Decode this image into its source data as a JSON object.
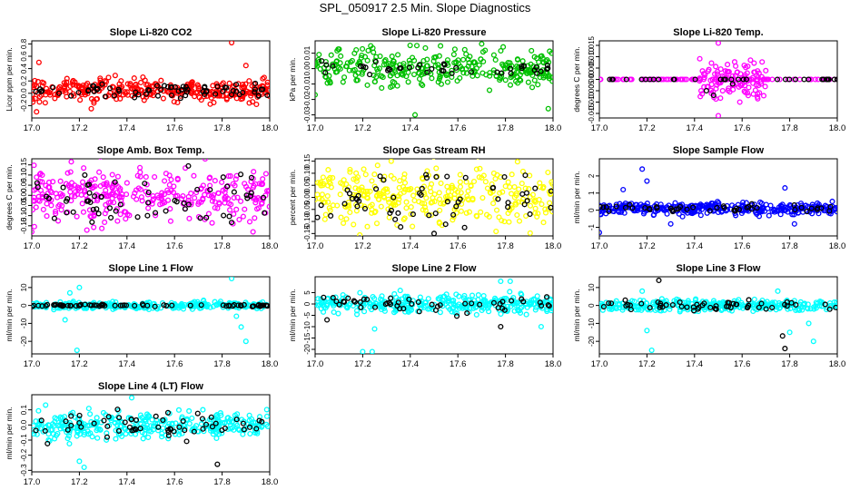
{
  "title": "SPL_050917  2.5 Min. Slope Diagnostics",
  "chart_data": [
    {
      "type": "scatter",
      "title": "Slope Li-820 CO2",
      "ylabel": "Licor ppm per min.",
      "xlabel": "",
      "xlim": [
        17.0,
        18.0
      ],
      "ylim": [
        -0.4,
        0.85
      ],
      "xticks": [
        17.0,
        17.2,
        17.4,
        17.6,
        17.8,
        18.0
      ],
      "xtick_labels": [
        "17.0",
        "17.2",
        "17.4",
        "17.6",
        "17.8",
        "18.0"
      ],
      "yticks": [
        -0.2,
        0.0,
        0.2,
        0.4,
        0.6,
        0.8
      ],
      "ytick_labels": [
        "-0.2",
        "0.0",
        "0.2",
        "0.4",
        "0.6",
        "0.8"
      ],
      "color": "#ff0000",
      "series": [
        {
          "name": "all",
          "color": "#ff0000",
          "n": 320,
          "center": 0.05,
          "spread": 0.09,
          "outliers": [
            [
              17.03,
              0.5
            ],
            [
              17.84,
              0.82
            ],
            [
              17.9,
              0.45
            ],
            [
              17.02,
              -0.3
            ],
            [
              17.25,
              -0.25
            ]
          ]
        },
        {
          "name": "selected",
          "color": "#000000",
          "n": 70,
          "center": 0.05,
          "spread": 0.06,
          "outliers": []
        }
      ]
    },
    {
      "type": "scatter",
      "title": "Slope Li-820 Pressure",
      "ylabel": "kPa per min.",
      "xlabel": "",
      "xlim": [
        17.0,
        18.0
      ],
      "ylim": [
        -0.032,
        0.018
      ],
      "xticks": [
        17.0,
        17.2,
        17.4,
        17.6,
        17.8,
        18.0
      ],
      "xtick_labels": [
        "17.0",
        "17.2",
        "17.4",
        "17.6",
        "17.8",
        "18.0"
      ],
      "yticks": [
        -0.03,
        -0.02,
        -0.01,
        0.0,
        0.01
      ],
      "ytick_labels": [
        "-0.03",
        "-0.02",
        "-0.01",
        "0.00",
        "0.01"
      ],
      "color": "#00c000",
      "series": [
        {
          "name": "all",
          "color": "#00c000",
          "n": 320,
          "center": 0.0,
          "spread": 0.006,
          "outliers": [
            [
              17.0,
              -0.017
            ],
            [
              17.42,
              -0.03
            ],
            [
              17.98,
              -0.026
            ],
            [
              17.7,
              0.016
            ]
          ]
        },
        {
          "name": "selected",
          "color": "#000000",
          "n": 40,
          "center": 0.0,
          "spread": 0.002,
          "outliers": []
        }
      ]
    },
    {
      "type": "scatter",
      "title": "Slope Li-820 Temp.",
      "ylabel": "degrees C per min.",
      "xlabel": "",
      "xlim": [
        17.0,
        18.0
      ],
      "ylim": [
        -0.017,
        0.017
      ],
      "xticks": [
        17.0,
        17.2,
        17.4,
        17.6,
        17.8,
        18.0
      ],
      "xtick_labels": [
        "17.0",
        "17.2",
        "17.4",
        "17.6",
        "17.8",
        "18.0"
      ],
      "yticks": [
        -0.015,
        -0.01,
        -0.005,
        0.0,
        0.005,
        0.01,
        0.015
      ],
      "ytick_labels": [
        "-0.015",
        "-0.010",
        "-0.005",
        "0.000",
        "0.005",
        "0.010",
        "0.015"
      ],
      "color": "#ff00ff",
      "series": [
        {
          "name": "baseline",
          "color": "#ff00ff",
          "n": 90,
          "center": 0.0,
          "spread": 0.0,
          "outliers": []
        },
        {
          "name": "burst",
          "color": "#ff00ff",
          "n": 110,
          "center": 0.0,
          "spread": 0.005,
          "xrange": [
            17.42,
            17.7
          ],
          "outliers": [
            [
              17.5,
              0.016
            ],
            [
              17.5,
              -0.016
            ]
          ]
        },
        {
          "name": "selected",
          "color": "#000000",
          "n": 35,
          "center": 0.0,
          "spread": 0.0,
          "outliers": [
            [
              17.45,
              -0.005
            ],
            [
              17.48,
              -0.007
            ],
            [
              17.56,
              -0.002
            ]
          ]
        }
      ]
    },
    {
      "type": "scatter",
      "title": "Slope Amb. Box Temp.",
      "ylabel": "degrees C per min.",
      "xlabel": "",
      "xlim": [
        17.0,
        18.0
      ],
      "ylim": [
        -0.2,
        0.18
      ],
      "xticks": [
        17.0,
        17.2,
        17.4,
        17.6,
        17.8,
        18.0
      ],
      "xtick_labels": [
        "17.0",
        "17.2",
        "17.4",
        "17.6",
        "17.8",
        "18.0"
      ],
      "yticks": [
        -0.15,
        -0.1,
        -0.05,
        0.0,
        0.05,
        0.1,
        0.15
      ],
      "ytick_labels": [
        "-0.15",
        "-0.10",
        "-0.05",
        "0.00",
        "0.05",
        "0.10",
        "0.15"
      ],
      "color": "#ff00ff",
      "series": [
        {
          "name": "all",
          "color": "#ff00ff",
          "n": 320,
          "center": 0.0,
          "spread": 0.065,
          "outliers": [
            [
              17.0,
              -0.18
            ],
            [
              17.93,
              -0.18
            ]
          ]
        },
        {
          "name": "selected",
          "color": "#000000",
          "n": 60,
          "center": 0.0,
          "spread": 0.06,
          "outliers": []
        }
      ]
    },
    {
      "type": "scatter",
      "title": "Slope Gas Stream RH",
      "ylabel": "percent per min.",
      "xlabel": "",
      "xlim": [
        17.0,
        18.0
      ],
      "ylim": [
        -0.16,
        0.16
      ],
      "xticks": [
        17.0,
        17.2,
        17.4,
        17.6,
        17.8,
        18.0
      ],
      "xtick_labels": [
        "17.0",
        "17.2",
        "17.4",
        "17.6",
        "17.8",
        "18.0"
      ],
      "yticks": [
        -0.15,
        -0.1,
        -0.05,
        0.0,
        0.05,
        0.1,
        0.15
      ],
      "ytick_labels": [
        "-0.15",
        "-0.10",
        "-0.05",
        "0.00",
        "0.05",
        "0.10",
        "0.15"
      ],
      "color": "#ffff00",
      "series": [
        {
          "name": "all",
          "color": "#ffff00",
          "n": 320,
          "center": 0.0,
          "spread": 0.06,
          "outliers": [
            [
              17.32,
              0.15
            ]
          ]
        },
        {
          "name": "selected",
          "color": "#000000",
          "n": 55,
          "center": 0.0,
          "spread": 0.055,
          "outliers": [
            [
              17.5,
              -0.15
            ]
          ]
        }
      ]
    },
    {
      "type": "scatter",
      "title": "Slope Sample Flow",
      "ylabel": "ml/min per min.",
      "xlabel": "",
      "xlim": [
        17.0,
        18.0
      ],
      "ylim": [
        -1.5,
        3.0
      ],
      "xticks": [
        17.0,
        17.2,
        17.4,
        17.6,
        17.8,
        18.0
      ],
      "xtick_labels": [
        "17.0",
        "17.2",
        "17.4",
        "17.6",
        "17.8",
        "18.0"
      ],
      "yticks": [
        -1,
        0,
        1,
        2
      ],
      "ytick_labels": [
        "-1",
        "0",
        "1",
        "2"
      ],
      "color": "#0000ff",
      "series": [
        {
          "name": "all",
          "color": "#0000ff",
          "n": 320,
          "center": 0.1,
          "spread": 0.18,
          "outliers": [
            [
              17.18,
              2.4
            ],
            [
              17.2,
              1.7
            ],
            [
              17.0,
              -1.3
            ],
            [
              17.3,
              -0.8
            ],
            [
              17.1,
              1.2
            ],
            [
              17.78,
              1.3
            ],
            [
              17.82,
              -0.8
            ]
          ]
        },
        {
          "name": "selected",
          "color": "#000000",
          "n": 45,
          "center": 0.1,
          "spread": 0.1,
          "outliers": []
        }
      ]
    },
    {
      "type": "scatter",
      "title": "Slope Line 1 Flow",
      "ylabel": "ml/min per min.",
      "xlabel": "",
      "xlim": [
        17.0,
        18.0
      ],
      "ylim": [
        -27,
        16
      ],
      "xticks": [
        17.0,
        17.2,
        17.4,
        17.6,
        17.8,
        18.0
      ],
      "xtick_labels": [
        "17.0",
        "17.2",
        "17.4",
        "17.6",
        "17.8",
        "18.0"
      ],
      "yticks": [
        -20,
        -10,
        0,
        10
      ],
      "ytick_labels": [
        "-20",
        "-10",
        "0",
        "10"
      ],
      "color": "#00ffff",
      "series": [
        {
          "name": "all",
          "color": "#00ffff",
          "n": 300,
          "center": 0.0,
          "spread": 1.0,
          "outliers": [
            [
              17.19,
              -25
            ],
            [
              17.16,
              7
            ],
            [
              17.2,
              10
            ],
            [
              17.14,
              -8
            ],
            [
              17.84,
              15
            ],
            [
              17.9,
              -20
            ],
            [
              17.88,
              -12
            ],
            [
              17.86,
              -6
            ]
          ]
        },
        {
          "name": "selected",
          "color": "#000000",
          "n": 70,
          "center": 0.0,
          "spread": 0.3,
          "outliers": []
        }
      ]
    },
    {
      "type": "scatter",
      "title": "Slope Line 2 Flow",
      "ylabel": "ml/min per min.",
      "xlabel": "",
      "xlim": [
        17.0,
        18.0
      ],
      "ylim": [
        -22,
        12
      ],
      "xticks": [
        17.0,
        17.2,
        17.4,
        17.6,
        17.8,
        18.0
      ],
      "xtick_labels": [
        "17.0",
        "17.2",
        "17.4",
        "17.6",
        "17.8",
        "18.0"
      ],
      "yticks": [
        -20,
        -15,
        -10,
        -5,
        0,
        5
      ],
      "ytick_labels": [
        "-20",
        "-15",
        "-10",
        "-5",
        "0",
        "5"
      ],
      "color": "#00ffff",
      "series": [
        {
          "name": "all",
          "color": "#00ffff",
          "n": 320,
          "center": 0.0,
          "spread": 2.0,
          "outliers": [
            [
              17.2,
              -21
            ],
            [
              17.24,
              -21
            ],
            [
              17.25,
              -11
            ],
            [
              17.78,
              10
            ],
            [
              17.82,
              10
            ],
            [
              17.95,
              -10
            ]
          ]
        },
        {
          "name": "selected",
          "color": "#000000",
          "n": 50,
          "center": 0.0,
          "spread": 2.0,
          "outliers": [
            [
              17.05,
              -7
            ],
            [
              17.78,
              -10
            ]
          ]
        }
      ]
    },
    {
      "type": "scatter",
      "title": "Slope Line 3 Flow",
      "ylabel": "ml/min per min.",
      "xlabel": "",
      "xlim": [
        17.0,
        18.0
      ],
      "ylim": [
        -27,
        16
      ],
      "xticks": [
        17.0,
        17.2,
        17.4,
        17.6,
        17.8,
        18.0
      ],
      "xtick_labels": [
        "17.0",
        "17.2",
        "17.4",
        "17.6",
        "17.8",
        "18.0"
      ],
      "yticks": [
        -20,
        -10,
        0,
        10
      ],
      "ytick_labels": [
        "-20",
        "-10",
        "0",
        "10"
      ],
      "color": "#00ffff",
      "series": [
        {
          "name": "all",
          "color": "#00ffff",
          "n": 300,
          "center": 0.0,
          "spread": 1.5,
          "outliers": [
            [
              17.22,
              -25
            ],
            [
              17.2,
              -14
            ],
            [
              17.18,
              8
            ],
            [
              17.75,
              8
            ],
            [
              17.8,
              -15
            ],
            [
              17.9,
              -20
            ],
            [
              17.88,
              -10
            ]
          ]
        },
        {
          "name": "selected",
          "color": "#000000",
          "n": 55,
          "center": 0.0,
          "spread": 1.5,
          "outliers": [
            [
              17.25,
              14
            ],
            [
              17.78,
              -24
            ],
            [
              17.77,
              -17
            ]
          ]
        }
      ]
    },
    {
      "type": "scatter",
      "title": "Slope Line 4 (LT) Flow",
      "ylabel": "ml/min per min.",
      "xlabel": "",
      "xlim": [
        17.0,
        18.0
      ],
      "ylim": [
        -0.31,
        0.2
      ],
      "xticks": [
        17.0,
        17.2,
        17.4,
        17.6,
        17.8,
        18.0
      ],
      "xtick_labels": [
        "17.0",
        "17.2",
        "17.4",
        "17.6",
        "17.8",
        "18.0"
      ],
      "yticks": [
        -0.3,
        -0.2,
        -0.1,
        0.0,
        0.1
      ],
      "ytick_labels": [
        "-0.3",
        "-0.2",
        "-0.1",
        "0.0",
        "0.1"
      ],
      "color": "#00ffff",
      "series": [
        {
          "name": "all",
          "color": "#00ffff",
          "n": 320,
          "center": 0.0,
          "spread": 0.045,
          "outliers": [
            [
              17.22,
              -0.28
            ],
            [
              17.2,
              -0.24
            ],
            [
              17.42,
              0.18
            ]
          ]
        },
        {
          "name": "selected",
          "color": "#000000",
          "n": 60,
          "center": 0.0,
          "spread": 0.05,
          "outliers": [
            [
              17.78,
              -0.26
            ]
          ]
        }
      ]
    }
  ]
}
